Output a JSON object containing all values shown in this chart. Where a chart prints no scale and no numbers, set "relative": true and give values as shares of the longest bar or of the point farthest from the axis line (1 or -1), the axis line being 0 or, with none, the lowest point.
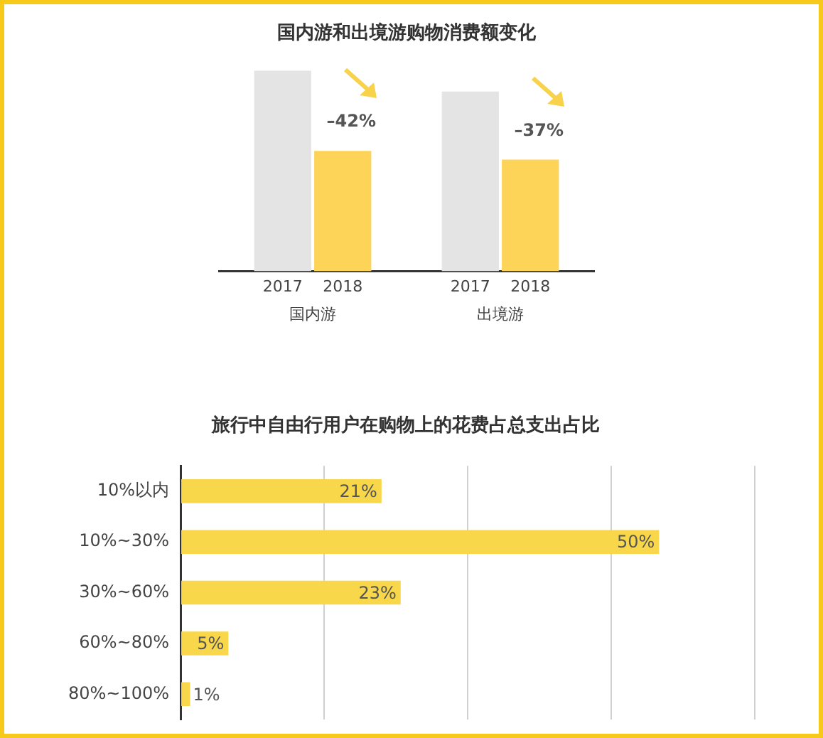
{
  "chart_data": [
    {
      "type": "bar",
      "title": "国内游和出境游购物消费额变化",
      "relative": true,
      "categories": [
        "国内游",
        "出境游"
      ],
      "series": [
        {
          "name": "2017",
          "color": "#e4e4e4",
          "values": [
            1,
            0.895
          ]
        },
        {
          "name": "2018",
          "color": "#fdd458",
          "values": [
            0.6,
            0.556
          ]
        }
      ],
      "annotations": [
        "–42%",
        "–37%"
      ],
      "legend": false,
      "grid": false
    },
    {
      "type": "bar",
      "title": "旅行中自由行用户在购物上的花费占总支出占比",
      "orientation": "horizontal",
      "categories": [
        "10%以内",
        "10%~30%",
        "30%~60%",
        "60%~80%",
        "80%~100%"
      ],
      "values": [
        21,
        50,
        23,
        5,
        1
      ],
      "value_labels": [
        "21%",
        "50%",
        "23%",
        "5%",
        "1%"
      ],
      "color": "#f8d74a",
      "xlim": [
        0,
        60
      ],
      "xticks": [
        {
          "value": 0,
          "label": null
        },
        {
          "value": 15,
          "label": null
        },
        {
          "value": 30,
          "label": null
        },
        {
          "value": 45,
          "label": null
        },
        {
          "value": 60,
          "label": null
        }
      ],
      "grid": "x",
      "tick_labels": "y",
      "legend": false
    }
  ]
}
